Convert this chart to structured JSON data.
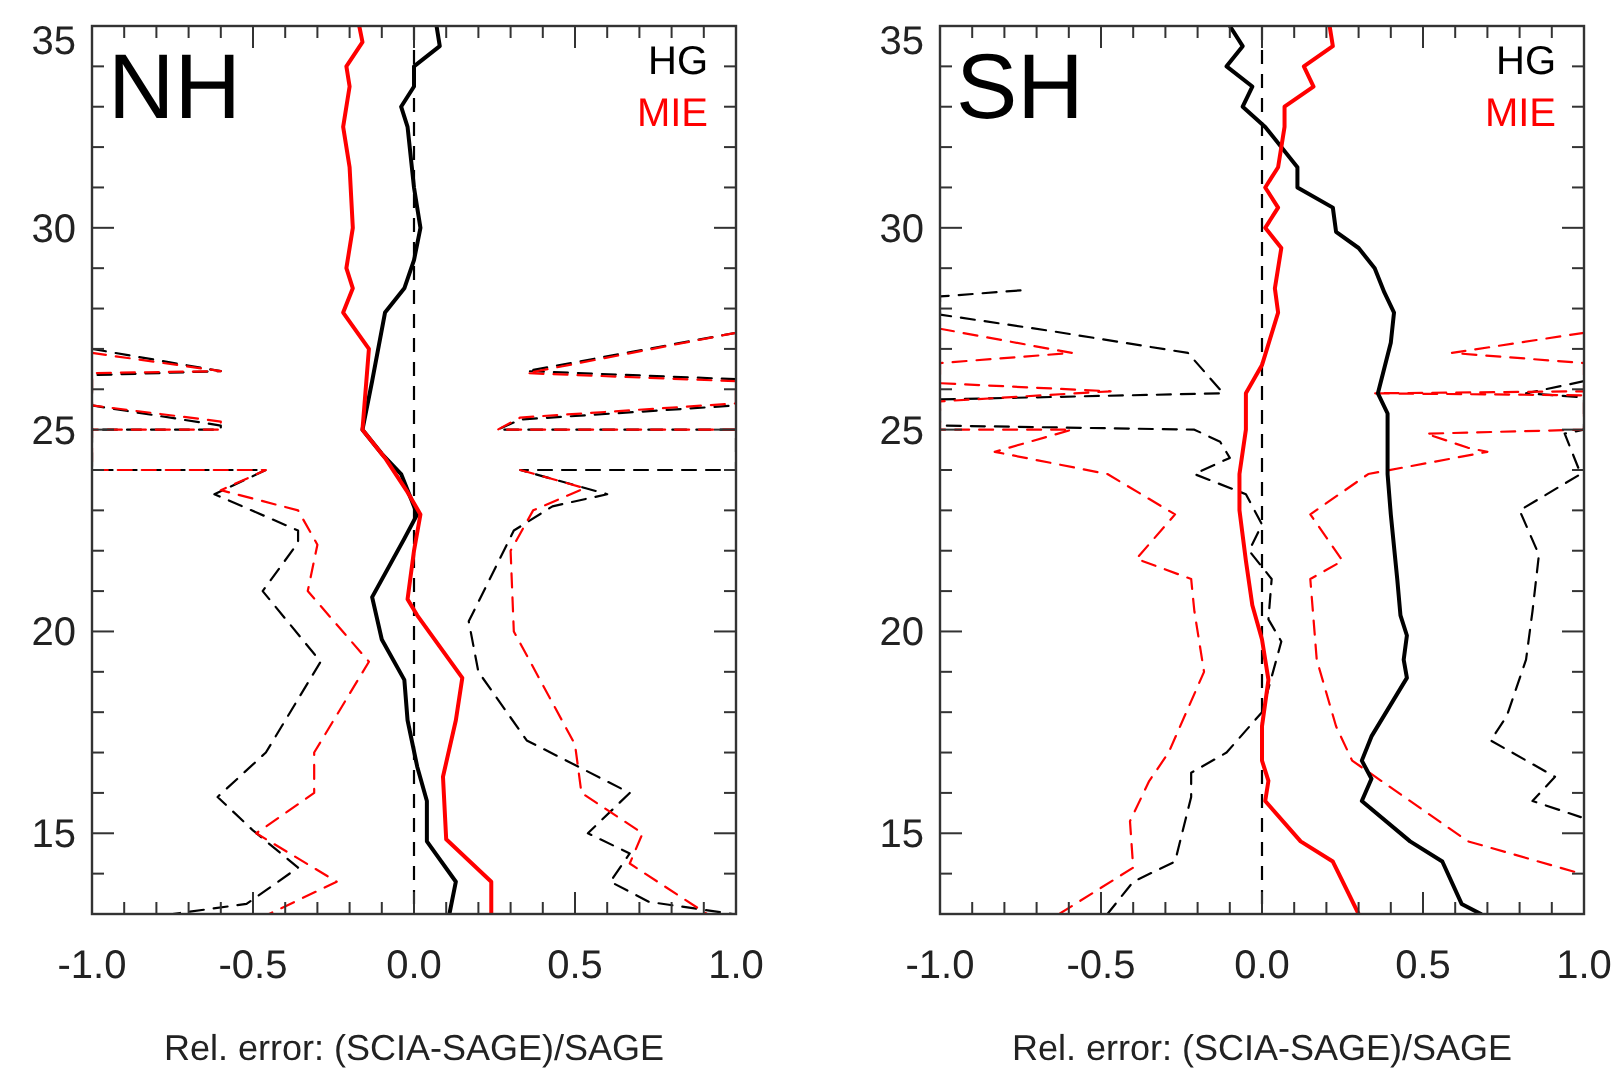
{
  "chart_data": [
    {
      "type": "line",
      "title": "NH",
      "xlabel": "Rel. error: (SCIA-SAGE)/SAGE",
      "xlim": [
        -1,
        1
      ],
      "ylim": [
        13,
        35
      ],
      "xticks": [
        {
          "value": -1,
          "label": "-1.0"
        },
        {
          "value": -0.9,
          "label": null
        },
        {
          "value": -0.8,
          "label": null
        },
        {
          "value": -0.7,
          "label": null
        },
        {
          "value": -0.6,
          "label": null
        },
        {
          "value": -0.5,
          "label": "-0.5"
        },
        {
          "value": -0.4,
          "label": null
        },
        {
          "value": -0.3,
          "label": null
        },
        {
          "value": -0.2,
          "label": null
        },
        {
          "value": -0.1,
          "label": null
        },
        {
          "value": 0,
          "label": "0.0"
        },
        {
          "value": 0.1,
          "label": null
        },
        {
          "value": 0.2,
          "label": null
        },
        {
          "value": 0.3,
          "label": null
        },
        {
          "value": 0.4,
          "label": null
        },
        {
          "value": 0.5,
          "label": "0.5"
        },
        {
          "value": 0.6,
          "label": null
        },
        {
          "value": 0.7,
          "label": null
        },
        {
          "value": 0.8,
          "label": null
        },
        {
          "value": 0.9,
          "label": null
        },
        {
          "value": 1,
          "label": "1.0"
        }
      ],
      "yticks": [
        {
          "value": 13,
          "label": null
        },
        {
          "value": 14,
          "label": null
        },
        15,
        {
          "value": 16,
          "label": null
        },
        {
          "value": 17,
          "label": null
        },
        {
          "value": 18,
          "label": null
        },
        {
          "value": 19,
          "label": null
        },
        20,
        {
          "value": 21,
          "label": null
        },
        {
          "value": 22,
          "label": null
        },
        {
          "value": 23,
          "label": null
        },
        {
          "value": 24,
          "label": null
        },
        25,
        {
          "value": 26,
          "label": null
        },
        {
          "value": 27,
          "label": null
        },
        {
          "value": 28,
          "label": null
        },
        {
          "value": 29,
          "label": null
        },
        30,
        {
          "value": 31,
          "label": null
        },
        {
          "value": 32,
          "label": null
        },
        {
          "value": 33,
          "label": null
        },
        {
          "value": 34,
          "label": null
        },
        35
      ],
      "grid": false,
      "legend": "top right",
      "ref_lines": [
        {
          "axis": "x",
          "value": 0,
          "line_style": "dashed",
          "color": "#000000"
        }
      ],
      "series": [
        {
          "color": "#000000",
          "line_style": "dashed",
          "x": [
            -1,
            -0.6,
            -1,
            -1,
            -0.6,
            -0.6,
            -1,
            -1,
            -0.46,
            -0.62,
            -0.36,
            -0.36,
            -0.47,
            -0.29,
            -0.46,
            -0.61,
            -0.5,
            -0.36,
            -0.52,
            -0.75
          ],
          "values": [
            27.0,
            26.45,
            26.35,
            25.6,
            25.1,
            25.0,
            25.0,
            24.0,
            24.0,
            23.4,
            22.5,
            22.2,
            21.0,
            19.25,
            17.0,
            15.9,
            15.07,
            14.15,
            13.25,
            13.0
          ]
        },
        {
          "color": "#ff0000",
          "line_style": "dashed",
          "x": [
            -1,
            -0.6,
            -1,
            -1,
            -0.6,
            -0.6,
            -1,
            -1,
            -0.46,
            -0.6,
            -0.36,
            -0.3,
            -0.33,
            -0.14,
            -0.31,
            -0.31,
            -0.49,
            -0.24,
            -0.45
          ],
          "values": [
            26.9,
            26.45,
            26.4,
            25.6,
            25.2,
            25.0,
            25.0,
            24.0,
            24.0,
            23.5,
            23.0,
            22.15,
            21.0,
            19.25,
            17.0,
            16.0,
            15.0,
            13.8,
            13.0
          ]
        },
        {
          "color": "#000000",
          "line_style": "dashed",
          "x": [
            1,
            0.35,
            1,
            1,
            0.33,
            0.26,
            1,
            1,
            0.33,
            0.6,
            0.43,
            0.31,
            0.17,
            0.2,
            0.35,
            0.67,
            0.54,
            0.67,
            0.61,
            0.73,
            0.99
          ],
          "values": [
            27.4,
            26.45,
            26.25,
            25.6,
            25.25,
            25.0,
            25.0,
            24.0,
            24.0,
            23.4,
            23.1,
            22.5,
            20.25,
            19.0,
            17.3,
            16.0,
            15.0,
            14.5,
            13.8,
            13.3,
            13.0
          ]
        },
        {
          "color": "#ff0000",
          "line_style": "dashed",
          "x": [
            1,
            0.35,
            1,
            1,
            0.33,
            0.26,
            1,
            null,
            0.33,
            0.53,
            0.37,
            0.3,
            0.31,
            0.5,
            0.52,
            0.71,
            0.67,
            0.91
          ],
          "values": [
            27.4,
            26.4,
            26.2,
            25.65,
            25.3,
            25.0,
            25.0,
            null,
            24.0,
            23.55,
            23.0,
            22.0,
            20.0,
            17.2,
            16.0,
            15.0,
            14.25,
            13.0
          ]
        },
        {
          "name": "HG",
          "color": "#000000",
          "line_style": "solid",
          "x": [
            0.07,
            0.08,
            0.0,
            0.0,
            -0.04,
            -0.02,
            0.0,
            0.02,
            0.0,
            -0.03,
            -0.09,
            -0.13,
            -0.16,
            -0.1,
            -0.04,
            0.01,
            -0.03,
            -0.13,
            -0.1,
            -0.03,
            -0.02,
            0.01,
            0.04,
            0.04,
            0.13,
            0.11
          ],
          "values": [
            35,
            34.5,
            34,
            33.5,
            33,
            32.5,
            31,
            30,
            29.2,
            28.5,
            27.9,
            26.2,
            25,
            24.4,
            23.9,
            22.9,
            22.3,
            20.85,
            19.8,
            18.8,
            17.8,
            16.65,
            15.8,
            14.8,
            13.8,
            13.0
          ]
        },
        {
          "name": "MIE",
          "color": "#ff0000",
          "line_style": "solid",
          "x": [
            -0.17,
            -0.16,
            -0.21,
            -0.2,
            -0.22,
            -0.2,
            -0.19,
            -0.21,
            -0.19,
            -0.22,
            -0.14,
            -0.16,
            -0.09,
            -0.02,
            0.02,
            0.0,
            -0.02,
            0.01,
            0.15,
            0.13,
            0.09,
            0.1,
            0.24,
            0.24
          ],
          "values": [
            35,
            34.6,
            34,
            33.5,
            32.5,
            31.5,
            30,
            29,
            28.5,
            27.9,
            27,
            25,
            24.3,
            23.45,
            22.9,
            22,
            20.8,
            20.4,
            18.85,
            17.8,
            16.4,
            14.85,
            13.8,
            13.0
          ]
        }
      ]
    },
    {
      "type": "line",
      "title": "SH",
      "xlabel": "Rel. error: (SCIA-SAGE)/SAGE",
      "xlim": [
        -1,
        1
      ],
      "ylim": [
        13,
        35
      ],
      "xticks": [
        {
          "value": -1,
          "label": "-1.0"
        },
        {
          "value": -0.9,
          "label": null
        },
        {
          "value": -0.8,
          "label": null
        },
        {
          "value": -0.7,
          "label": null
        },
        {
          "value": -0.6,
          "label": null
        },
        {
          "value": -0.5,
          "label": "-0.5"
        },
        {
          "value": -0.4,
          "label": null
        },
        {
          "value": -0.3,
          "label": null
        },
        {
          "value": -0.2,
          "label": null
        },
        {
          "value": -0.1,
          "label": null
        },
        {
          "value": 0,
          "label": "0.0"
        },
        {
          "value": 0.1,
          "label": null
        },
        {
          "value": 0.2,
          "label": null
        },
        {
          "value": 0.3,
          "label": null
        },
        {
          "value": 0.4,
          "label": null
        },
        {
          "value": 0.5,
          "label": "0.5"
        },
        {
          "value": 0.6,
          "label": null
        },
        {
          "value": 0.7,
          "label": null
        },
        {
          "value": 0.8,
          "label": null
        },
        {
          "value": 0.9,
          "label": null
        },
        {
          "value": 1,
          "label": "1.0"
        }
      ],
      "yticks": [
        {
          "value": 13,
          "label": null
        },
        {
          "value": 14,
          "label": null
        },
        15,
        {
          "value": 16,
          "label": null
        },
        {
          "value": 17,
          "label": null
        },
        {
          "value": 18,
          "label": null
        },
        {
          "value": 19,
          "label": null
        },
        20,
        {
          "value": 21,
          "label": null
        },
        {
          "value": 22,
          "label": null
        },
        {
          "value": 23,
          "label": null
        },
        {
          "value": 24,
          "label": null
        },
        25,
        {
          "value": 26,
          "label": null
        },
        {
          "value": 27,
          "label": null
        },
        {
          "value": 28,
          "label": null
        },
        {
          "value": 29,
          "label": null
        },
        30,
        {
          "value": 31,
          "label": null
        },
        {
          "value": 32,
          "label": null
        },
        {
          "value": 33,
          "label": null
        },
        {
          "value": 34,
          "label": null
        },
        35
      ],
      "grid": false,
      "legend": "top right",
      "ref_lines": [
        {
          "axis": "x",
          "value": 0,
          "line_style": "dashed",
          "color": "#000000"
        }
      ],
      "series": [
        {
          "color": "#000000",
          "line_style": "dashed",
          "x": [
            -0.75,
            -1,
            -1,
            -0.66,
            -0.23,
            -0.12,
            -1,
            -1,
            -0.21,
            -0.13,
            -0.1,
            -0.21,
            -0.05,
            0.0,
            -0.04,
            0.03,
            0.02,
            0.06,
            0.0,
            -0.11,
            -0.22,
            -0.22,
            -0.27,
            -0.4,
            -0.48
          ],
          "values": [
            28.45,
            28.3,
            27.85,
            27.45,
            26.9,
            25.9,
            25.75,
            25.1,
            25.0,
            24.7,
            24.3,
            23.9,
            23.4,
            22.65,
            22.0,
            21.3,
            20.3,
            19.75,
            18.0,
            17.0,
            16.5,
            15.9,
            14.3,
            13.8,
            13.0
          ]
        },
        {
          "color": "#ff0000",
          "line_style": "dashed",
          "x": [
            -1,
            -0.59,
            -1,
            -1,
            -0.47,
            -1,
            -1,
            -0.59,
            -0.83,
            -0.48,
            -0.27,
            -0.39,
            -0.22,
            -0.21,
            -0.18,
            -0.29,
            -0.35,
            -0.41,
            -0.4,
            -0.63
          ],
          "values": [
            27.5,
            26.9,
            26.65,
            26.15,
            25.95,
            25.7,
            25.0,
            25.0,
            24.45,
            23.9,
            22.9,
            21.8,
            21.3,
            20.5,
            19.0,
            17.0,
            16.3,
            15.3,
            14.15,
            13.0
          ]
        },
        {
          "color": "#000000",
          "line_style": "dashed",
          "x": [
            1,
            0.82,
            1,
            1,
            0.94,
            0.99,
            0.8,
            0.86,
            0.84,
            0.82,
            0.76,
            0.71,
            0.91,
            0.84,
            0.99
          ],
          "values": [
            26.2,
            25.9,
            25.8,
            25.0,
            24.9,
            23.9,
            23.0,
            21.9,
            20.5,
            19.3,
            17.9,
            17.3,
            16.4,
            15.8,
            15.4
          ]
        },
        {
          "color": "#ff0000",
          "line_style": "dashed",
          "x": [
            1,
            0.59,
            1,
            1,
            0.35,
            1,
            1,
            0.51,
            0.64,
            0.7,
            0.33,
            0.15,
            0.25,
            0.15,
            0.17,
            0.23,
            0.28,
            0.37,
            0.64,
            0.99
          ],
          "values": [
            27.4,
            26.9,
            26.65,
            25.95,
            25.9,
            25.85,
            25.0,
            24.9,
            24.55,
            24.45,
            23.9,
            22.9,
            21.75,
            21.3,
            19.3,
            17.65,
            16.8,
            16.3,
            14.8,
            14.0
          ]
        },
        {
          "name": "HG",
          "color": "#000000",
          "line_style": "solid",
          "x": [
            -0.1,
            -0.06,
            -0.11,
            -0.03,
            -0.06,
            0.01,
            0.11,
            0.11,
            0.22,
            0.23,
            0.3,
            0.35,
            0.38,
            0.41,
            0.4,
            0.36,
            0.39,
            0.39,
            0.39,
            0.4,
            0.42,
            0.43,
            0.45,
            0.44,
            0.45,
            0.34,
            0.31,
            0.34,
            0.31,
            0.46,
            0.56,
            0.62,
            0.68
          ],
          "values": [
            35,
            34.5,
            34,
            33.5,
            33,
            32.5,
            31.5,
            31,
            30.5,
            29.9,
            29.5,
            29,
            28.4,
            27.9,
            27.15,
            25.9,
            25.4,
            24.65,
            23.9,
            22.9,
            21.3,
            20.4,
            19.9,
            19.3,
            18.85,
            17.4,
            16.8,
            16.35,
            15.8,
            14.8,
            14.3,
            13.25,
            13.0
          ]
        },
        {
          "name": "MIE",
          "color": "#ff0000",
          "line_style": "solid",
          "x": [
            0.21,
            0.22,
            0.13,
            0.16,
            0.07,
            0.07,
            0.05,
            0.01,
            0.05,
            0.01,
            0.06,
            0.04,
            0.05,
            0.0,
            -0.05,
            -0.05,
            -0.07,
            -0.07,
            -0.05,
            -0.03,
            0.0,
            0.02,
            0.0,
            0.0,
            0.02,
            0.01,
            0.12,
            0.22,
            0.3
          ],
          "values": [
            35,
            34.5,
            34,
            33.5,
            33,
            32.5,
            31.5,
            31,
            30.5,
            30,
            29.5,
            28.5,
            27.9,
            26.6,
            25.9,
            25,
            23.9,
            23,
            21.75,
            20.65,
            19.8,
            18.8,
            17.65,
            16.8,
            16.3,
            15.8,
            14.8,
            14.3,
            13.0
          ]
        }
      ]
    }
  ]
}
